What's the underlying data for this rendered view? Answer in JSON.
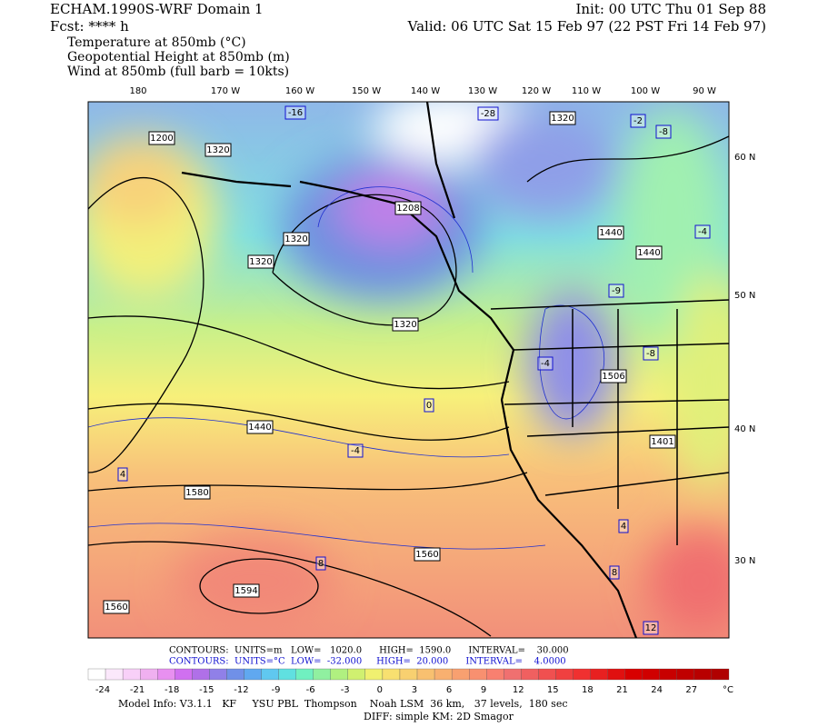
{
  "header": {
    "title": "ECHAM.1990S-WRF Domain 1",
    "forecast": "Fcst: **** h",
    "init": "Init: 00 UTC Thu 01 Sep 88",
    "valid": "Valid: 06 UTC Sat 15 Feb 97 (22 PST Fri 14 Feb 97)",
    "fields": [
      "Temperature at 850mb (°C)",
      "Geopotential Height at 850mb (m)",
      "Wind at 850mb (full barb = 10kts)"
    ]
  },
  "map": {
    "longitude_labels": [
      "180",
      "170 W",
      "160 W",
      "150 W",
      "140 W",
      "130 W",
      "120 W",
      "110 W",
      "100 W",
      "90 W"
    ],
    "latitude_labels": [
      "60 N",
      "50 N",
      "40 N",
      "30 N"
    ],
    "contour_labels": [
      "1200",
      "1320",
      "1320",
      "1320",
      "1208",
      "1320",
      "1320",
      "1440",
      "1440",
      "1440",
      "1560",
      "1580",
      "1594",
      "1506",
      "1401",
      "1560",
      "-16",
      "-28",
      "-2",
      "-8",
      "-4",
      "-9",
      "-8",
      "-4",
      "0",
      "-4",
      "4",
      "8",
      "4",
      "8",
      "12"
    ]
  },
  "footer": {
    "height_contours": "CONTOURS:  UNITS=m   LOW=   1020.0      HIGH=  1590.0      INTERVAL=    30.000",
    "temperature_contours": "CONTOURS:  UNITS=°C  LOW=  -32.000     HIGH=  20.000      INTERVAL=    4.0000",
    "colorbar_labels": [
      -24,
      -21,
      -18,
      -15,
      -12,
      -9,
      -6,
      -3,
      0,
      3,
      6,
      9,
      12,
      15,
      18,
      21,
      24,
      27
    ],
    "colorbar_unit": "°C",
    "model_info": "Model Info: V3.1.1   KF     YSU PBL  Thompson    Noah LSM  36 km,   37 levels,  180 sec",
    "diff": "DIFF: simple KM: 2D Smagor"
  }
}
